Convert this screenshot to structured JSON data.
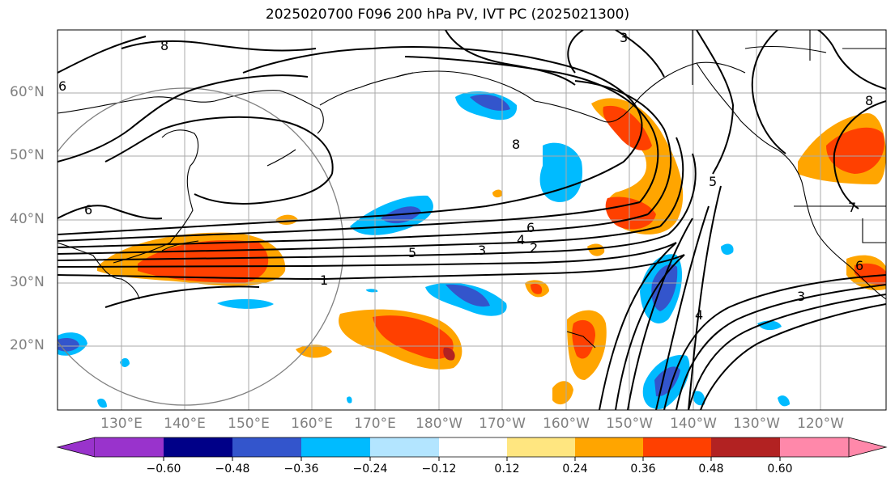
{
  "title": "2025020700 F096 200 hPa PV, IVT PC (2025021300)",
  "lat_labels": [
    "60°N",
    "50°N",
    "40°N",
    "30°N",
    "20°N"
  ],
  "lon_labels": [
    "130°E",
    "140°E",
    "150°E",
    "160°E",
    "170°E",
    "180°W",
    "170°W",
    "160°W",
    "150°W",
    "140°W",
    "130°W",
    "120°W"
  ],
  "colorbar": {
    "ticks": [
      "−0.60",
      "−0.48",
      "−0.36",
      "−0.24",
      "−0.12",
      "0.12",
      "0.24",
      "0.36",
      "0.48",
      "0.60"
    ],
    "colors": [
      "#9933cc",
      "#000088",
      "#3355cc",
      "#00bbff",
      "#b3e5ff",
      "#ffffff",
      "#ffe680",
      "#ffa500",
      "#ff4000",
      "#b22222",
      "#ff88aa"
    ]
  },
  "contour_labels": [
    "8",
    "3",
    "6",
    "5",
    "3",
    "4",
    "6",
    "2",
    "1",
    "8",
    "5",
    "7",
    "4",
    "3",
    "8",
    "6",
    "6"
  ]
}
